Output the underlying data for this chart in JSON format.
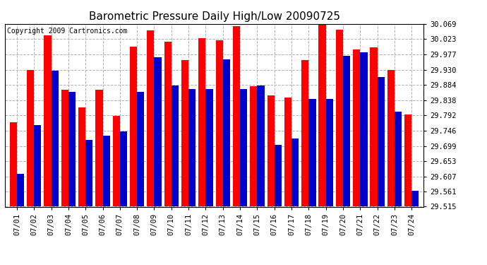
{
  "title": "Barometric Pressure Daily High/Low 20090725",
  "copyright": "Copyright 2009 Cartronics.com",
  "dates": [
    "07/01",
    "07/02",
    "07/03",
    "07/04",
    "07/05",
    "07/06",
    "07/07",
    "07/08",
    "07/09",
    "07/10",
    "07/11",
    "07/12",
    "07/13",
    "07/14",
    "07/15",
    "07/16",
    "07/17",
    "07/18",
    "07/19",
    "07/20",
    "07/21",
    "07/22",
    "07/23",
    "07/24"
  ],
  "highs": [
    29.77,
    29.93,
    30.035,
    29.87,
    29.815,
    29.87,
    29.79,
    30.0,
    30.05,
    30.015,
    29.96,
    30.025,
    30.02,
    30.062,
    29.88,
    29.852,
    29.845,
    29.96,
    30.085,
    30.052,
    29.992,
    29.998,
    29.93,
    29.795
  ],
  "lows": [
    29.615,
    29.762,
    29.928,
    29.862,
    29.718,
    29.73,
    29.742,
    29.862,
    29.968,
    29.882,
    29.872,
    29.872,
    29.962,
    29.872,
    29.882,
    29.702,
    29.722,
    29.842,
    29.842,
    29.972,
    29.982,
    29.907,
    29.802,
    29.563
  ],
  "ymin": 29.515,
  "ymax": 30.069,
  "yticks": [
    29.515,
    29.561,
    29.607,
    29.653,
    29.699,
    29.746,
    29.792,
    29.838,
    29.884,
    29.93,
    29.977,
    30.023,
    30.069
  ],
  "bar_width": 0.42,
  "high_color": "#ff0000",
  "low_color": "#0000cc",
  "bg_color": "#ffffff",
  "grid_color": "#aaaaaa",
  "title_fontsize": 11,
  "copyright_fontsize": 7,
  "tick_fontsize": 7.5
}
